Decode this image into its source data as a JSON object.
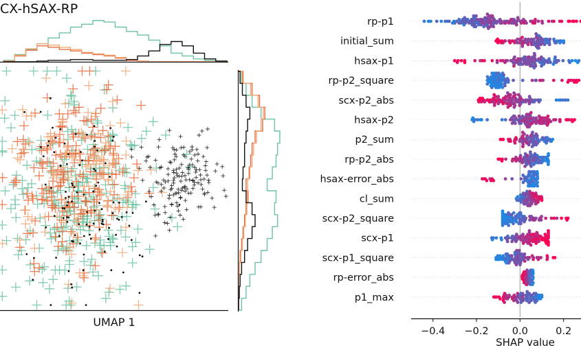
{
  "panel_title": "CX-hSAX-RP",
  "colors": {
    "green": "#6cc3a1",
    "orange": "#e96a38",
    "light_orange": "#f0a878",
    "black": "#111111",
    "shap_low": "#1e88e5",
    "shap_high": "#ff0052",
    "zero_line": "#999999"
  },
  "chart_data": [
    {
      "type": "scatter",
      "xlabel": "UMAP 1",
      "ylabel": "",
      "note": "UMAP embedding with marginal step histograms (top: UMAP 1, right: UMAP 2)",
      "series": [],
      "clusters": [
        {
          "color": "green",
          "marker": "plus",
          "cx": 0.35,
          "cy": 0.55,
          "sx": 0.17,
          "sy": 0.22,
          "n": 260
        },
        {
          "color": "orange",
          "marker": "plus",
          "cx": 0.3,
          "cy": 0.45,
          "sx": 0.13,
          "sy": 0.17,
          "n": 200
        },
        {
          "color": "light_orange",
          "marker": "plus",
          "cx": 0.33,
          "cy": 0.48,
          "sx": 0.15,
          "sy": 0.2,
          "n": 110
        },
        {
          "color": "black",
          "marker": "dot",
          "cx": 0.37,
          "cy": 0.58,
          "sx": 0.13,
          "sy": 0.2,
          "n": 110
        },
        {
          "color": "black",
          "marker": "plus-small",
          "cx": 0.79,
          "cy": 0.45,
          "sx": 0.08,
          "sy": 0.1,
          "n": 150
        }
      ],
      "top_hist": [
        {
          "color": "green",
          "values": [
            2,
            10,
            17,
            25,
            33,
            40,
            48,
            52,
            57,
            55,
            48,
            42,
            37,
            30,
            22,
            12,
            8,
            4,
            2,
            1
          ]
        },
        {
          "color": "orange",
          "values": [
            1,
            8,
            16,
            22,
            20,
            17,
            15,
            12,
            10,
            8,
            5,
            2,
            1,
            0,
            0,
            0,
            0,
            0,
            0,
            0
          ]
        },
        {
          "color": "light_orange",
          "values": [
            1,
            9,
            18,
            25,
            23,
            20,
            17,
            13,
            11,
            9,
            6,
            3,
            1,
            0,
            0,
            0,
            0,
            0,
            0,
            0
          ]
        },
        {
          "color": "black",
          "values": [
            0,
            0,
            0,
            1,
            2,
            2,
            3,
            3,
            2,
            2,
            2,
            3,
            8,
            15,
            24,
            28,
            22,
            12,
            4,
            1
          ]
        }
      ],
      "right_hist": [
        {
          "color": "green",
          "values": [
            4,
            10,
            18,
            30,
            48,
            55,
            52,
            50,
            45,
            38,
            50,
            48,
            52,
            45,
            38,
            30,
            22,
            15,
            10,
            4
          ]
        },
        {
          "color": "orange",
          "values": [
            6,
            18,
            28,
            35,
            32,
            22,
            18,
            16,
            14,
            10,
            12,
            10,
            8,
            6,
            4,
            2,
            1,
            0,
            0,
            0
          ]
        },
        {
          "color": "light_orange",
          "values": [
            5,
            16,
            26,
            33,
            30,
            24,
            20,
            18,
            15,
            12,
            13,
            11,
            9,
            7,
            5,
            3,
            1,
            0,
            0,
            0
          ]
        },
        {
          "color": "black",
          "values": [
            2,
            5,
            10,
            15,
            12,
            10,
            8,
            8,
            6,
            5,
            10,
            18,
            22,
            18,
            12,
            8,
            4,
            2,
            1,
            0
          ]
        }
      ]
    },
    {
      "type": "scatter",
      "subtype": "shap-beeswarm",
      "xlabel": "SHAP value",
      "ylabel": "",
      "xlim": [
        -0.5,
        0.28
      ],
      "xticks": [
        -0.4,
        -0.2,
        0.0,
        0.2
      ],
      "xtick_labels": [
        "−0.4",
        "−0.2",
        "0.0",
        "0.2"
      ],
      "grid": false,
      "features": [
        {
          "name": "rp-p1",
          "min": -0.44,
          "max": 0.28,
          "center": -0.13,
          "spread": 0.1,
          "n": 150,
          "trend": 1
        },
        {
          "name": "initial_sum",
          "min": -0.11,
          "max": 0.2,
          "center": 0.06,
          "spread": 0.05,
          "n": 95,
          "trend": -1
        },
        {
          "name": "hsax-p1",
          "min": -0.3,
          "max": 0.27,
          "center": 0.03,
          "spread": 0.07,
          "n": 110,
          "trend": -1
        },
        {
          "name": "rp-p2_square",
          "min": -0.15,
          "max": 0.27,
          "center": -0.1,
          "spread": 0.025,
          "n": 95,
          "trend": 1
        },
        {
          "name": "scx-p2_abs",
          "min": -0.2,
          "max": 0.22,
          "center": -0.05,
          "spread": 0.07,
          "n": 110,
          "trend": -1
        },
        {
          "name": "hsax-p2",
          "min": -0.22,
          "max": 0.25,
          "center": 0.05,
          "spread": 0.05,
          "n": 105,
          "trend": 1
        },
        {
          "name": "p2_sum",
          "min": -0.09,
          "max": 0.15,
          "center": 0.05,
          "spread": 0.04,
          "n": 85,
          "trend": -1
        },
        {
          "name": "rp-p2_abs",
          "min": -0.1,
          "max": 0.13,
          "center": 0.05,
          "spread": 0.035,
          "n": 85,
          "trend": -1
        },
        {
          "name": "hsax-error_abs",
          "min": -0.18,
          "max": 0.08,
          "center": 0.05,
          "spread": 0.02,
          "n": 75,
          "trend": -1
        },
        {
          "name": "cl_sum",
          "min": -0.02,
          "max": 0.1,
          "center": 0.04,
          "spread": 0.03,
          "n": 70,
          "trend": 1
        },
        {
          "name": "scx-p2_square",
          "min": -0.08,
          "max": 0.22,
          "center": -0.03,
          "spread": 0.06,
          "n": 95,
          "trend": 1
        },
        {
          "name": "scx-p1",
          "min": -0.13,
          "max": 0.13,
          "center": 0.04,
          "spread": 0.06,
          "n": 95,
          "trend": 1
        },
        {
          "name": "scx-p1_square",
          "min": -0.11,
          "max": 0.16,
          "center": -0.02,
          "spread": 0.04,
          "n": 85,
          "trend": 1
        },
        {
          "name": "rp-error_abs",
          "min": 0.01,
          "max": 0.06,
          "center": 0.04,
          "spread": 0.012,
          "n": 55,
          "trend": -1
        },
        {
          "name": "p1_max",
          "min": -0.12,
          "max": 0.1,
          "center": 0.0,
          "spread": 0.05,
          "n": 80,
          "trend": -1
        }
      ]
    }
  ]
}
